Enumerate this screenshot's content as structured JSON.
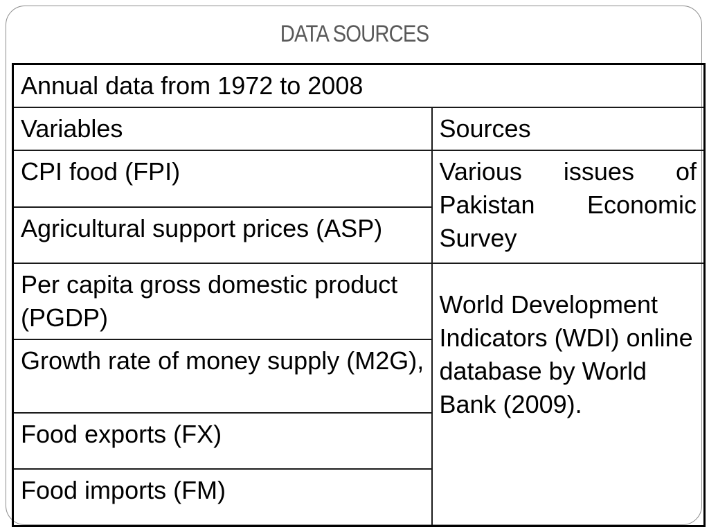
{
  "slide": {
    "title": "DATA SOURCES"
  },
  "table": {
    "header_span": "Annual data from 1972 to 2008",
    "col_headers": [
      "Variables",
      "Sources"
    ],
    "variables": [
      "CPI food (FPI)",
      "Agricultural support prices (ASP)",
      "Per capita gross domestic product (PGDP)",
      "Growth rate of money supply (M2G),",
      "Food exports (FX)",
      "Food imports (FM)"
    ],
    "sources": [
      "Various issues of Pakistan Economic Survey",
      "World Development Indicators (WDI) online database by World Bank (2009)."
    ]
  }
}
